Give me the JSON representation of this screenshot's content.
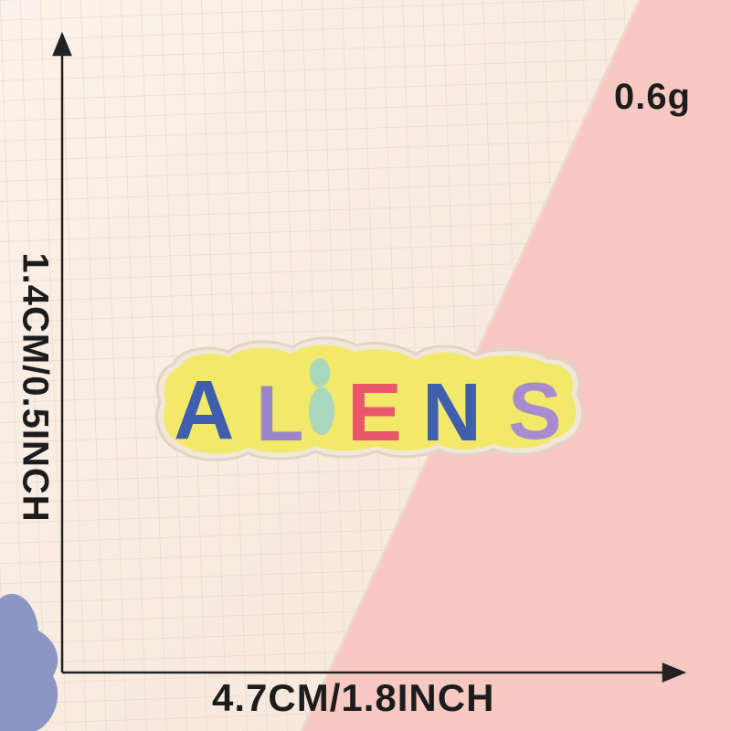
{
  "dimensions": {
    "weight": "0.6g",
    "height_label": "1.4CM/0.5INCH",
    "width_label": "4.7CM/1.8INCH"
  },
  "patch": {
    "text": "ALIENS",
    "letters": [
      {
        "char": "A",
        "color": "#3f5fae"
      },
      {
        "char": "L",
        "color": "#9a86c6"
      },
      {
        "char": "I",
        "color": "#a9d8bd"
      },
      {
        "char": "E",
        "color": "#e8586a"
      },
      {
        "char": "N",
        "color": "#3f5fae"
      },
      {
        "char": "S",
        "color": "#a98bcf"
      }
    ],
    "background_color": "#f2e86a"
  },
  "colors": {
    "paper": "#fbeee4",
    "pink_background": "#f7c9c2",
    "grid_line": "#e9ddd4",
    "text": "#1c1c1c"
  }
}
